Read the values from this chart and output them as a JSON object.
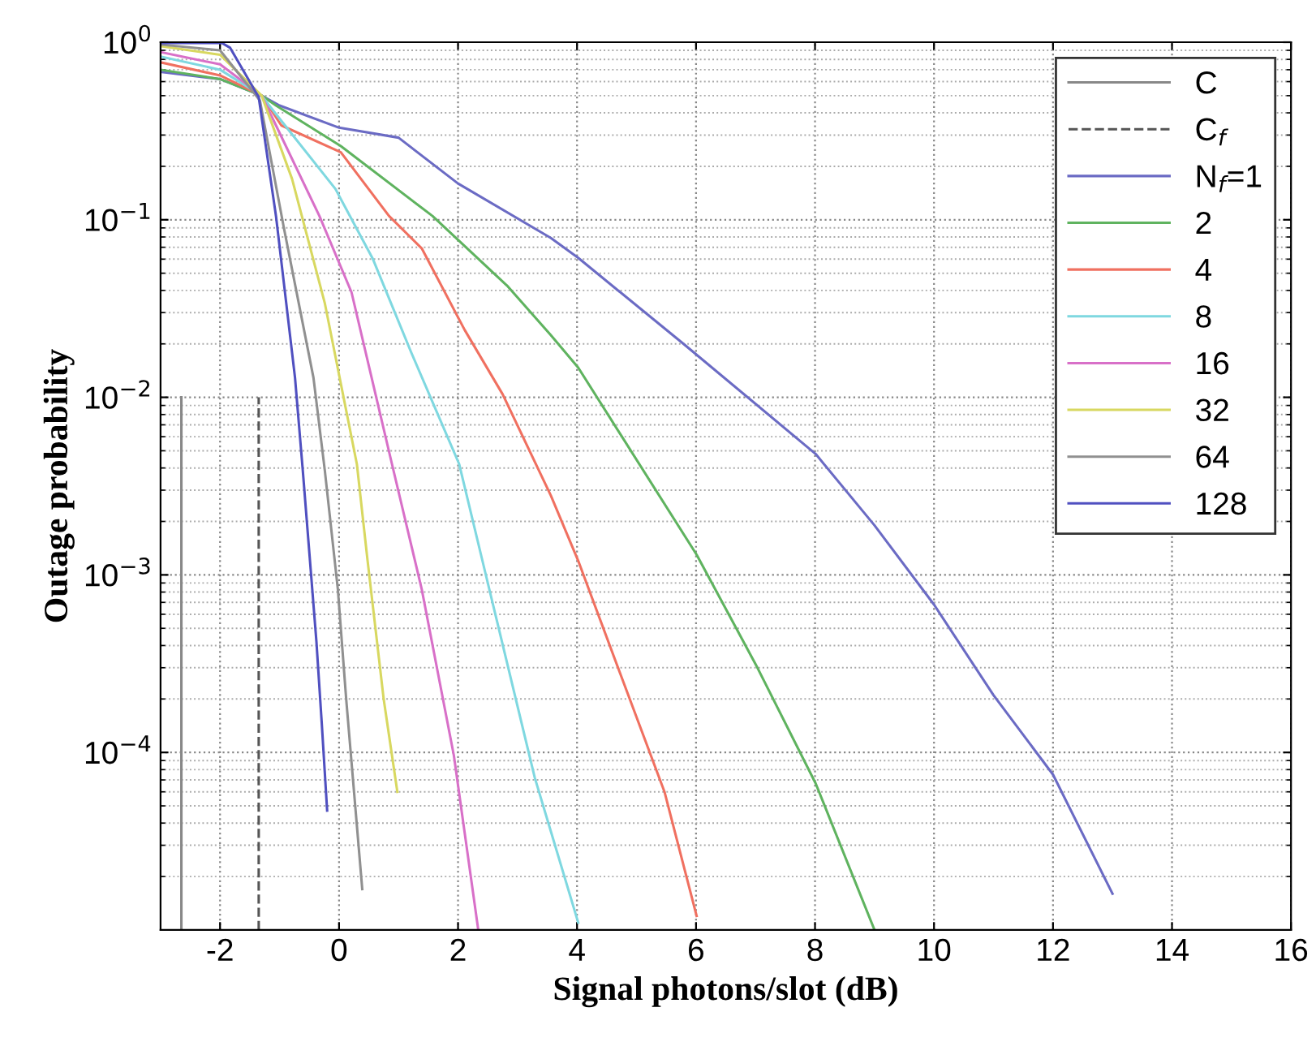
{
  "chart_data": {
    "type": "line",
    "xlabel": "Signal photons/slot (dB)",
    "ylabel": "Outage probability",
    "log": "y",
    "grid": true,
    "legend": "top right",
    "line_style": "solid",
    "marker": "none",
    "xlim": [
      -3,
      16
    ],
    "xticks": [
      -2,
      0,
      2,
      4,
      6,
      8,
      10,
      12,
      14,
      16
    ],
    "ylim": [
      1e-05,
      1
    ],
    "yticks": [
      {
        "value": 1,
        "label": "10$^{0}$"
      },
      {
        "value": 0.1,
        "label": "10$^{−1}$"
      },
      {
        "value": 0.01,
        "label": "10$^{−2}$"
      },
      {
        "value": 0.001,
        "label": "10$^{−3}$"
      },
      {
        "value": 0.0001,
        "label": "10$^{−4}$"
      }
    ],
    "series": [
      {
        "name": "C",
        "color": "#888888",
        "line_style": "solid",
        "x": [
          -2.65,
          -2.65
        ],
        "values": [
          1e-05,
          0.01
        ]
      },
      {
        "name": "C$_{f}$",
        "color": "#555555",
        "line_style": "dashed",
        "x": [
          -1.35,
          -1.35
        ],
        "values": [
          1e-05,
          0.01
        ]
      },
      {
        "name": "N$_{f}$=1",
        "color": "#6b6bc4",
        "x": [
          -3,
          -2,
          -1.3,
          -1,
          0,
          1,
          2,
          3.56,
          4.02,
          5.79,
          8.01,
          9.0,
          10.0,
          11.0,
          12.0,
          13.0
        ],
        "values": [
          0.68,
          0.62,
          0.5,
          0.44,
          0.33,
          0.29,
          0.16,
          0.079,
          0.061,
          0.02,
          0.0048,
          0.0019,
          0.00068,
          0.00021,
          7.5e-05,
          1.6e-05
        ]
      },
      {
        "name": "2",
        "color": "#5fb35f",
        "x": [
          -3,
          -2,
          -1.3,
          -1.06,
          0.03,
          1.57,
          2.84,
          3.56,
          4.02,
          6.01,
          7.01,
          8.01,
          9.0
        ],
        "values": [
          0.7,
          0.62,
          0.5,
          0.44,
          0.26,
          0.105,
          0.042,
          0.0224,
          0.0147,
          0.0013,
          0.00031,
          6.7e-05,
          1e-05
        ]
      },
      {
        "name": "4",
        "color": "#f07060",
        "x": [
          -3,
          -2,
          -1.3,
          -0.97,
          0.03,
          0.84,
          1.39,
          2.11,
          2.75,
          3.56,
          4.02,
          4.74,
          5.47,
          6.01
        ],
        "values": [
          0.77,
          0.65,
          0.5,
          0.34,
          0.24,
          0.105,
          0.069,
          0.024,
          0.0104,
          0.0028,
          0.0012,
          0.00027,
          6e-05,
          1.2e-05
        ]
      },
      {
        "name": "8",
        "color": "#7fd8e0",
        "x": [
          -3,
          -2,
          -1.3,
          -1.15,
          -0.06,
          0.57,
          1.21,
          2.02,
          2.48,
          3.29,
          4.02
        ],
        "values": [
          0.83,
          0.7,
          0.5,
          0.43,
          0.149,
          0.06,
          0.018,
          0.0042,
          0.00096,
          7.2e-05,
          1.1e-05
        ]
      },
      {
        "name": "16",
        "color": "#d870c8",
        "x": [
          -3,
          -2,
          -1.3,
          -1.06,
          -0.33,
          0.21,
          0.89,
          1.39,
          1.93,
          2.34
        ],
        "values": [
          0.88,
          0.75,
          0.5,
          0.34,
          0.105,
          0.039,
          0.0042,
          0.00083,
          9.6e-05,
          1e-05
        ]
      },
      {
        "name": "32",
        "color": "#d8d860",
        "x": [
          -3,
          -2,
          -1.3,
          -0.79,
          -0.24,
          0.3,
          0.48,
          0.75,
          0.98
        ],
        "values": [
          0.95,
          0.85,
          0.5,
          0.17,
          0.034,
          0.0042,
          0.0012,
          0.0002,
          6e-05
        ]
      },
      {
        "name": "64",
        "color": "#909090",
        "x": [
          -3,
          -2,
          -1.33,
          -0.93,
          -0.43,
          -0.24,
          -0.02,
          0.12,
          0.39
        ],
        "values": [
          0.97,
          0.9,
          0.47,
          0.091,
          0.0129,
          0.0039,
          0.00083,
          0.0002,
          1.7e-05
        ]
      },
      {
        "name": "128",
        "color": "#5050c0",
        "x": [
          -3,
          -1.97,
          -1.83,
          -1.35,
          -1.06,
          -0.74,
          -0.61,
          -0.38,
          -0.29,
          -0.2
        ],
        "values": [
          0.99,
          0.99,
          0.93,
          0.49,
          0.105,
          0.0129,
          0.0039,
          0.00042,
          0.000145,
          4.7e-05
        ]
      }
    ]
  }
}
